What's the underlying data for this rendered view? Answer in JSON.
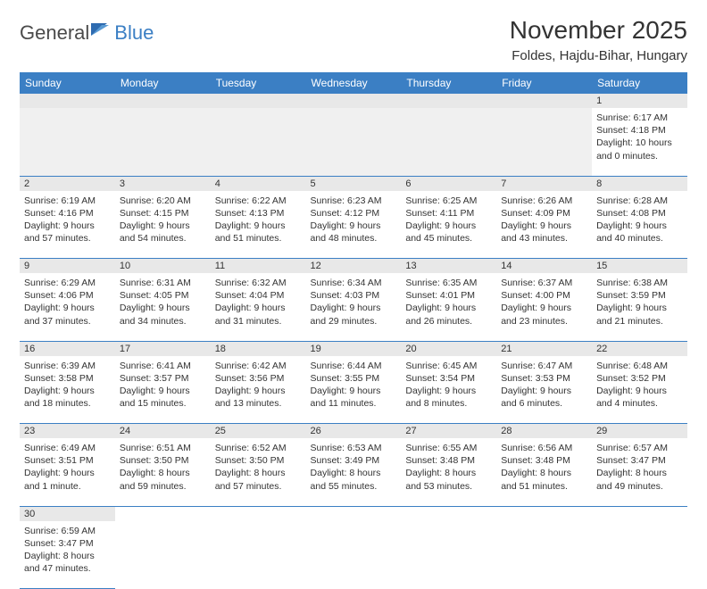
{
  "logo": {
    "part1": "General",
    "part2": "Blue"
  },
  "title": "November 2025",
  "location": "Foldes, Hajdu-Bihar, Hungary",
  "colors": {
    "header_bg": "#3b7fc4",
    "header_text": "#ffffff",
    "daynum_bg": "#e8e8e8",
    "border": "#3b7fc4",
    "blank_bg": "#f0f0f0",
    "text": "#333333"
  },
  "day_headers": [
    "Sunday",
    "Monday",
    "Tuesday",
    "Wednesday",
    "Thursday",
    "Friday",
    "Saturday"
  ],
  "weeks": [
    [
      null,
      null,
      null,
      null,
      null,
      null,
      {
        "n": "1",
        "sunrise": "6:17 AM",
        "sunset": "4:18 PM",
        "daylight": "10 hours and 0 minutes."
      }
    ],
    [
      {
        "n": "2",
        "sunrise": "6:19 AM",
        "sunset": "4:16 PM",
        "daylight": "9 hours and 57 minutes."
      },
      {
        "n": "3",
        "sunrise": "6:20 AM",
        "sunset": "4:15 PM",
        "daylight": "9 hours and 54 minutes."
      },
      {
        "n": "4",
        "sunrise": "6:22 AM",
        "sunset": "4:13 PM",
        "daylight": "9 hours and 51 minutes."
      },
      {
        "n": "5",
        "sunrise": "6:23 AM",
        "sunset": "4:12 PM",
        "daylight": "9 hours and 48 minutes."
      },
      {
        "n": "6",
        "sunrise": "6:25 AM",
        "sunset": "4:11 PM",
        "daylight": "9 hours and 45 minutes."
      },
      {
        "n": "7",
        "sunrise": "6:26 AM",
        "sunset": "4:09 PM",
        "daylight": "9 hours and 43 minutes."
      },
      {
        "n": "8",
        "sunrise": "6:28 AM",
        "sunset": "4:08 PM",
        "daylight": "9 hours and 40 minutes."
      }
    ],
    [
      {
        "n": "9",
        "sunrise": "6:29 AM",
        "sunset": "4:06 PM",
        "daylight": "9 hours and 37 minutes."
      },
      {
        "n": "10",
        "sunrise": "6:31 AM",
        "sunset": "4:05 PM",
        "daylight": "9 hours and 34 minutes."
      },
      {
        "n": "11",
        "sunrise": "6:32 AM",
        "sunset": "4:04 PM",
        "daylight": "9 hours and 31 minutes."
      },
      {
        "n": "12",
        "sunrise": "6:34 AM",
        "sunset": "4:03 PM",
        "daylight": "9 hours and 29 minutes."
      },
      {
        "n": "13",
        "sunrise": "6:35 AM",
        "sunset": "4:01 PM",
        "daylight": "9 hours and 26 minutes."
      },
      {
        "n": "14",
        "sunrise": "6:37 AM",
        "sunset": "4:00 PM",
        "daylight": "9 hours and 23 minutes."
      },
      {
        "n": "15",
        "sunrise": "6:38 AM",
        "sunset": "3:59 PM",
        "daylight": "9 hours and 21 minutes."
      }
    ],
    [
      {
        "n": "16",
        "sunrise": "6:39 AM",
        "sunset": "3:58 PM",
        "daylight": "9 hours and 18 minutes."
      },
      {
        "n": "17",
        "sunrise": "6:41 AM",
        "sunset": "3:57 PM",
        "daylight": "9 hours and 15 minutes."
      },
      {
        "n": "18",
        "sunrise": "6:42 AM",
        "sunset": "3:56 PM",
        "daylight": "9 hours and 13 minutes."
      },
      {
        "n": "19",
        "sunrise": "6:44 AM",
        "sunset": "3:55 PM",
        "daylight": "9 hours and 11 minutes."
      },
      {
        "n": "20",
        "sunrise": "6:45 AM",
        "sunset": "3:54 PM",
        "daylight": "9 hours and 8 minutes."
      },
      {
        "n": "21",
        "sunrise": "6:47 AM",
        "sunset": "3:53 PM",
        "daylight": "9 hours and 6 minutes."
      },
      {
        "n": "22",
        "sunrise": "6:48 AM",
        "sunset": "3:52 PM",
        "daylight": "9 hours and 4 minutes."
      }
    ],
    [
      {
        "n": "23",
        "sunrise": "6:49 AM",
        "sunset": "3:51 PM",
        "daylight": "9 hours and 1 minute."
      },
      {
        "n": "24",
        "sunrise": "6:51 AM",
        "sunset": "3:50 PM",
        "daylight": "8 hours and 59 minutes."
      },
      {
        "n": "25",
        "sunrise": "6:52 AM",
        "sunset": "3:50 PM",
        "daylight": "8 hours and 57 minutes."
      },
      {
        "n": "26",
        "sunrise": "6:53 AM",
        "sunset": "3:49 PM",
        "daylight": "8 hours and 55 minutes."
      },
      {
        "n": "27",
        "sunrise": "6:55 AM",
        "sunset": "3:48 PM",
        "daylight": "8 hours and 53 minutes."
      },
      {
        "n": "28",
        "sunrise": "6:56 AM",
        "sunset": "3:48 PM",
        "daylight": "8 hours and 51 minutes."
      },
      {
        "n": "29",
        "sunrise": "6:57 AM",
        "sunset": "3:47 PM",
        "daylight": "8 hours and 49 minutes."
      }
    ],
    [
      {
        "n": "30",
        "sunrise": "6:59 AM",
        "sunset": "3:47 PM",
        "daylight": "8 hours and 47 minutes."
      },
      null,
      null,
      null,
      null,
      null,
      null
    ]
  ],
  "labels": {
    "sunrise": "Sunrise:",
    "sunset": "Sunset:",
    "daylight": "Daylight:"
  }
}
